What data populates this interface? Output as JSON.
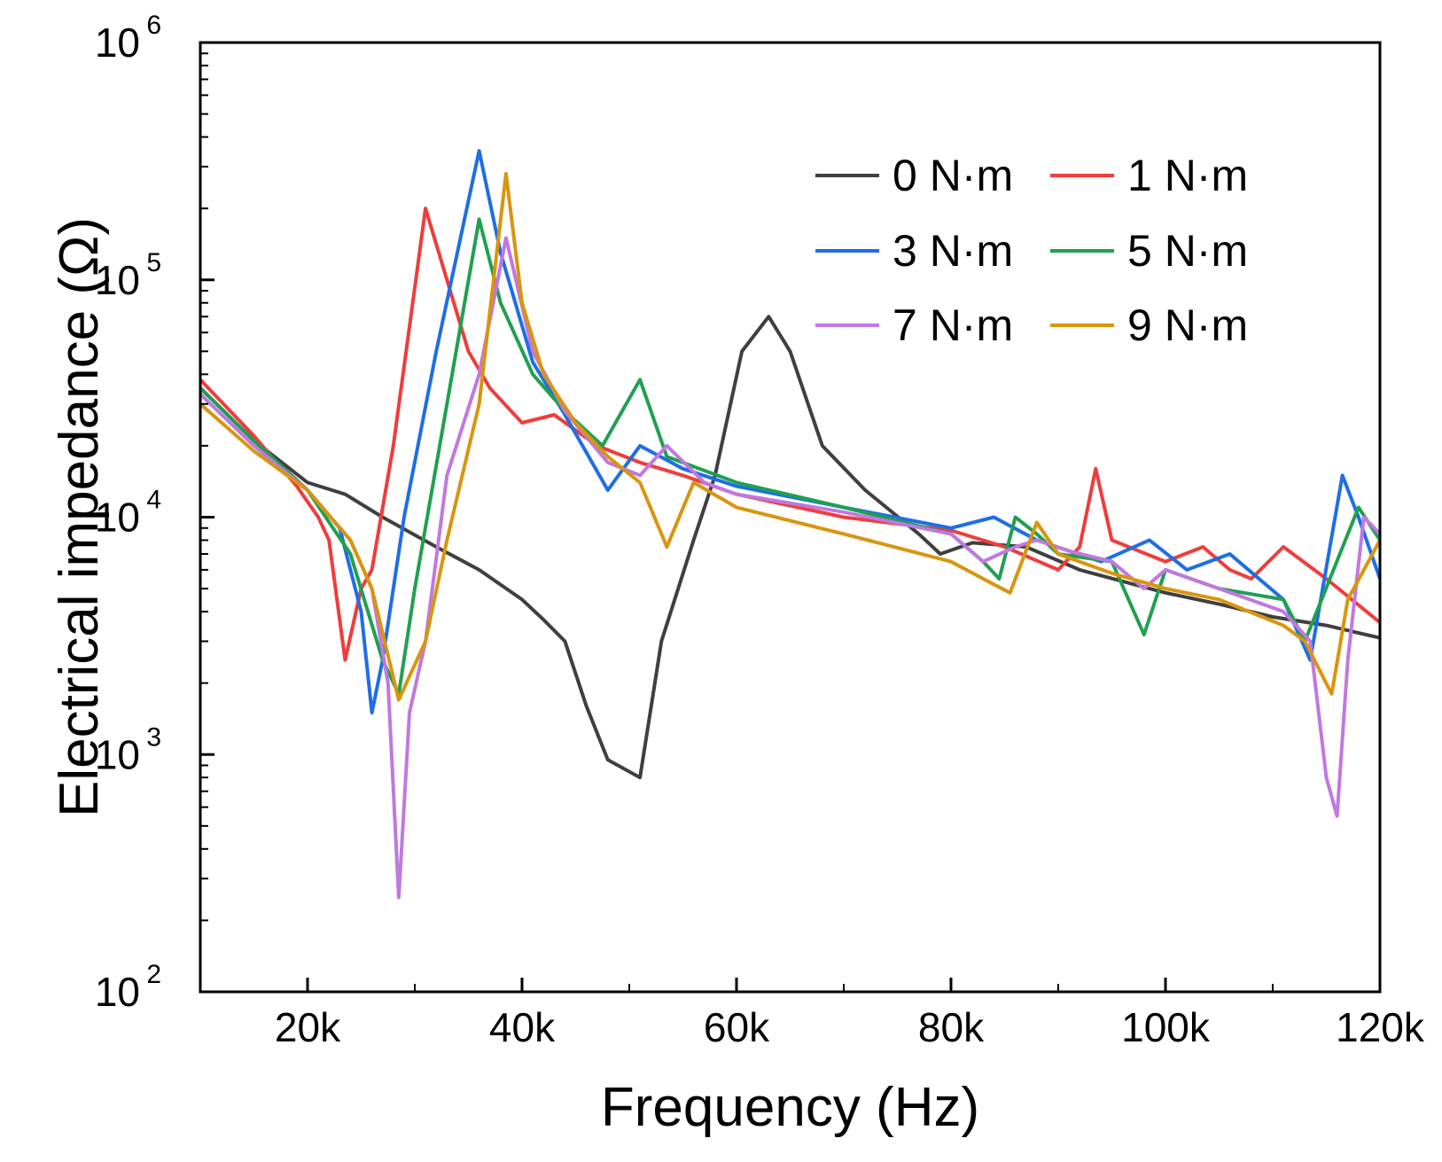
{
  "chart_data": {
    "type": "line",
    "title": "",
    "xlabel": "Frequency (Hz)",
    "ylabel": "Electrical impedance (Ω)",
    "xlim": [
      10000,
      120000
    ],
    "ylim": [
      100,
      1000000
    ],
    "yscale": "log",
    "grid": false,
    "legend_position": "top-right",
    "x_ticks": [
      20000,
      40000,
      60000,
      80000,
      100000,
      120000
    ],
    "x_tick_labels": [
      "20k",
      "40k",
      "60k",
      "80k",
      "100k",
      "120k"
    ],
    "y_ticks": [
      100,
      1000,
      10000,
      100000,
      1000000
    ],
    "y_tick_labels": [
      {
        "base": "10",
        "exp": "2"
      },
      {
        "base": "10",
        "exp": "3"
      },
      {
        "base": "10",
        "exp": "4"
      },
      {
        "base": "10",
        "exp": "5"
      },
      {
        "base": "10",
        "exp": "6"
      }
    ],
    "series": [
      {
        "name": "0 N·m",
        "color": "#3f3f3f",
        "points": [
          [
            10000,
            35000
          ],
          [
            15000,
            21000
          ],
          [
            20000,
            14000
          ],
          [
            23500,
            12500
          ],
          [
            27000,
            10000
          ],
          [
            32000,
            7500
          ],
          [
            36000,
            6000
          ],
          [
            40000,
            4500
          ],
          [
            42000,
            3700
          ],
          [
            44000,
            3000
          ],
          [
            46000,
            1600
          ],
          [
            48000,
            950
          ],
          [
            51000,
            800
          ],
          [
            53000,
            3000
          ],
          [
            56000,
            8000
          ],
          [
            58000,
            15000
          ],
          [
            60500,
            50000
          ],
          [
            63000,
            70000
          ],
          [
            65000,
            50000
          ],
          [
            68000,
            20000
          ],
          [
            72000,
            13000
          ],
          [
            77000,
            8500
          ],
          [
            79000,
            7000
          ],
          [
            82000,
            7800
          ],
          [
            87000,
            7500
          ],
          [
            92000,
            6000
          ],
          [
            100000,
            4800
          ],
          [
            105000,
            4300
          ],
          [
            110000,
            3800
          ],
          [
            115000,
            3500
          ],
          [
            120000,
            3100
          ]
        ]
      },
      {
        "name": "1 N·m",
        "color": "#f03c3c",
        "points": [
          [
            10000,
            38000
          ],
          [
            15000,
            22000
          ],
          [
            19000,
            13500
          ],
          [
            21000,
            10000
          ],
          [
            22000,
            8000
          ],
          [
            23500,
            2500
          ],
          [
            25000,
            5000
          ],
          [
            26000,
            6000
          ],
          [
            28000,
            20000
          ],
          [
            31000,
            200000
          ],
          [
            33000,
            100000
          ],
          [
            35000,
            50000
          ],
          [
            37000,
            35000
          ],
          [
            40000,
            25000
          ],
          [
            43000,
            27000
          ],
          [
            47000,
            20000
          ],
          [
            51000,
            17000
          ],
          [
            55000,
            15000
          ],
          [
            60000,
            12500
          ],
          [
            70000,
            10000
          ],
          [
            80000,
            8800
          ],
          [
            85000,
            7500
          ],
          [
            90000,
            6000
          ],
          [
            92000,
            7500
          ],
          [
            93500,
            16000
          ],
          [
            95000,
            8000
          ],
          [
            100000,
            6500
          ],
          [
            103500,
            7500
          ],
          [
            106000,
            6000
          ],
          [
            108000,
            5500
          ],
          [
            111000,
            7500
          ],
          [
            115000,
            5500
          ],
          [
            120000,
            3600
          ]
        ]
      },
      {
        "name": "3 N·m",
        "color": "#1e6ee6",
        "points": [
          [
            10000,
            35000
          ],
          [
            15000,
            21000
          ],
          [
            20000,
            13000
          ],
          [
            23000,
            9000
          ],
          [
            25000,
            4000
          ],
          [
            26000,
            1500
          ],
          [
            27000,
            2500
          ],
          [
            29000,
            10000
          ],
          [
            32000,
            50000
          ],
          [
            36000,
            350000
          ],
          [
            38000,
            130000
          ],
          [
            41000,
            45000
          ],
          [
            44000,
            27000
          ],
          [
            48000,
            13000
          ],
          [
            51000,
            20000
          ],
          [
            55000,
            16000
          ],
          [
            60000,
            13500
          ],
          [
            70000,
            11000
          ],
          [
            80000,
            9000
          ],
          [
            84000,
            10000
          ],
          [
            88000,
            8000
          ],
          [
            94000,
            6500
          ],
          [
            98500,
            8000
          ],
          [
            102000,
            6000
          ],
          [
            106000,
            7000
          ],
          [
            111000,
            4500
          ],
          [
            113500,
            2500
          ],
          [
            116500,
            15000
          ],
          [
            118000,
            10000
          ],
          [
            120000,
            5500
          ]
        ]
      },
      {
        "name": "5 N·m",
        "color": "#20a050",
        "points": [
          [
            10000,
            35000
          ],
          [
            15000,
            21000
          ],
          [
            20000,
            13000
          ],
          [
            24000,
            7000
          ],
          [
            27000,
            2500
          ],
          [
            28500,
            1800
          ],
          [
            30000,
            5000
          ],
          [
            33000,
            30000
          ],
          [
            36000,
            180000
          ],
          [
            38000,
            80000
          ],
          [
            41000,
            40000
          ],
          [
            44000,
            28000
          ],
          [
            47500,
            20000
          ],
          [
            51000,
            38000
          ],
          [
            53500,
            18000
          ],
          [
            60000,
            14000
          ],
          [
            70000,
            11000
          ],
          [
            80000,
            8500
          ],
          [
            83000,
            6500
          ],
          [
            84500,
            5500
          ],
          [
            86000,
            10000
          ],
          [
            88000,
            8500
          ],
          [
            90000,
            7000
          ],
          [
            95000,
            6500
          ],
          [
            98000,
            3200
          ],
          [
            100000,
            6000
          ],
          [
            105000,
            5000
          ],
          [
            111000,
            4500
          ],
          [
            113000,
            3000
          ],
          [
            118000,
            11000
          ],
          [
            120000,
            8000
          ]
        ]
      },
      {
        "name": "7 N·m",
        "color": "#c078e0",
        "points": [
          [
            10000,
            33000
          ],
          [
            15000,
            20000
          ],
          [
            20000,
            13000
          ],
          [
            24000,
            8000
          ],
          [
            26000,
            5000
          ],
          [
            27500,
            2000
          ],
          [
            28500,
            250
          ],
          [
            29500,
            1500
          ],
          [
            31000,
            3000
          ],
          [
            33000,
            15000
          ],
          [
            36000,
            40000
          ],
          [
            38500,
            150000
          ],
          [
            41000,
            50000
          ],
          [
            44000,
            28000
          ],
          [
            48000,
            17000
          ],
          [
            51000,
            15000
          ],
          [
            53500,
            20000
          ],
          [
            57000,
            14000
          ],
          [
            60000,
            12500
          ],
          [
            70000,
            10500
          ],
          [
            80000,
            8500
          ],
          [
            83000,
            6500
          ],
          [
            86000,
            7500
          ],
          [
            88000,
            8000
          ],
          [
            91000,
            7200
          ],
          [
            95000,
            6500
          ],
          [
            98000,
            5000
          ],
          [
            100000,
            6000
          ],
          [
            105000,
            5000
          ],
          [
            111000,
            4000
          ],
          [
            113500,
            3000
          ],
          [
            115000,
            800
          ],
          [
            116000,
            550
          ],
          [
            117000,
            2500
          ],
          [
            118500,
            10000
          ],
          [
            120000,
            8500
          ]
        ]
      },
      {
        "name": "9 N·m",
        "color": "#d9950e",
        "points": [
          [
            10000,
            30000
          ],
          [
            15000,
            19000
          ],
          [
            20000,
            13000
          ],
          [
            24000,
            8000
          ],
          [
            26000,
            5000
          ],
          [
            28500,
            1700
          ],
          [
            31000,
            3000
          ],
          [
            33000,
            8000
          ],
          [
            36000,
            30000
          ],
          [
            38500,
            280000
          ],
          [
            40000,
            80000
          ],
          [
            42000,
            40000
          ],
          [
            45000,
            25000
          ],
          [
            48000,
            18000
          ],
          [
            51000,
            14000
          ],
          [
            53500,
            7500
          ],
          [
            56000,
            14000
          ],
          [
            60000,
            11000
          ],
          [
            70000,
            8500
          ],
          [
            80000,
            6500
          ],
          [
            83000,
            5500
          ],
          [
            85500,
            4800
          ],
          [
            88000,
            9500
          ],
          [
            90000,
            7000
          ],
          [
            95000,
            5800
          ],
          [
            100000,
            5000
          ],
          [
            105000,
            4500
          ],
          [
            111000,
            3500
          ],
          [
            113000,
            3000
          ],
          [
            115500,
            1800
          ],
          [
            117000,
            4500
          ],
          [
            120000,
            8000
          ]
        ]
      }
    ]
  }
}
